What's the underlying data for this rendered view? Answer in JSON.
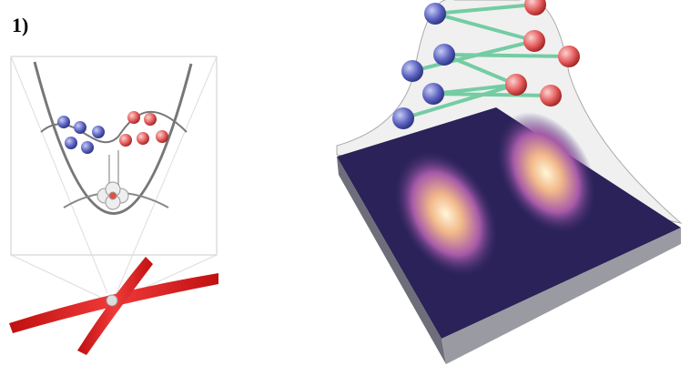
{
  "label": "1)"
}
